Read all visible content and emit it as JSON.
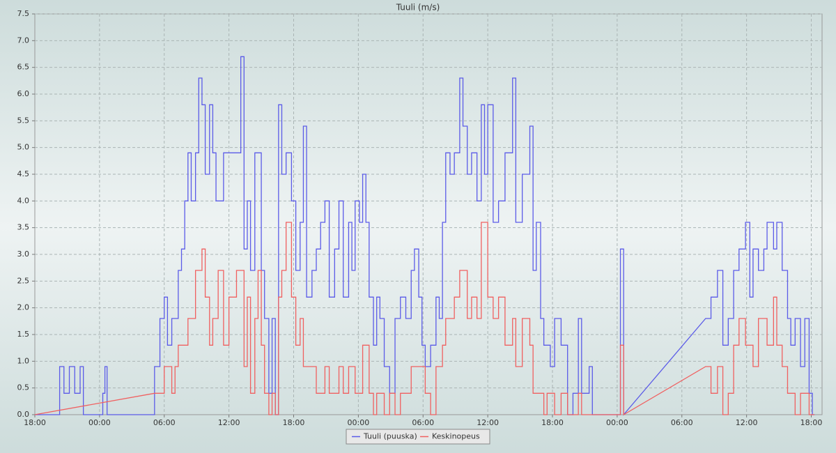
{
  "chart_data": {
    "type": "line",
    "step": true,
    "title": "Tuuli (m/s)",
    "xlim": [
      0,
      73
    ],
    "ylim": [
      0,
      7.5
    ],
    "grid": true,
    "legend": "bottom",
    "xticks": [
      {
        "value": 0,
        "label": "18:00"
      },
      {
        "value": 6,
        "label": "00:00"
      },
      {
        "value": 12,
        "label": "06:00"
      },
      {
        "value": 18,
        "label": "12:00"
      },
      {
        "value": 24,
        "label": "18:00"
      },
      {
        "value": 30,
        "label": "00:00"
      },
      {
        "value": 36,
        "label": "06:00"
      },
      {
        "value": 42,
        "label": "12:00"
      },
      {
        "value": 48,
        "label": "18:00"
      },
      {
        "value": 54,
        "label": "00:00"
      },
      {
        "value": 60,
        "label": "06:00"
      },
      {
        "value": 66,
        "label": "12:00"
      },
      {
        "value": 72,
        "label": "18:00"
      }
    ],
    "yticks": [
      {
        "value": 0,
        "label": "0.0"
      },
      {
        "value": 0.5,
        "label": "0.5"
      },
      {
        "value": 1,
        "label": "1.0"
      },
      {
        "value": 1.5,
        "label": "1.5"
      },
      {
        "value": 2,
        "label": "2.0"
      },
      {
        "value": 2.5,
        "label": "2.5"
      },
      {
        "value": 3,
        "label": "3.0"
      },
      {
        "value": 3.5,
        "label": "3.5"
      },
      {
        "value": 4,
        "label": "4.0"
      },
      {
        "value": 4.5,
        "label": "4.5"
      },
      {
        "value": 5,
        "label": "5.0"
      },
      {
        "value": 5.5,
        "label": "5.5"
      },
      {
        "value": 6,
        "label": "6.0"
      },
      {
        "value": 6.5,
        "label": "6.5"
      },
      {
        "value": 7,
        "label": "7.0"
      },
      {
        "value": 7.5,
        "label": "7.5"
      }
    ],
    "series": [
      {
        "name": "Tuuli (puuska)",
        "color": "#5b5be8",
        "x": [
          0,
          2.3,
          2.7,
          3.2,
          3.7,
          4.2,
          4.5,
          6.3,
          6.5,
          6.7,
          11.1,
          11.6,
          12.0,
          12.3,
          12.7,
          13.3,
          13.6,
          13.9,
          14.2,
          14.5,
          14.9,
          15.2,
          15.5,
          15.8,
          16.2,
          16.5,
          16.8,
          17.5,
          18.7,
          19.1,
          19.4,
          19.7,
          20.0,
          20.4,
          20.7,
          21.0,
          21.3,
          21.7,
          22.0,
          22.3,
          22.6,
          22.9,
          23.3,
          23.8,
          24.2,
          24.6,
          24.9,
          25.2,
          25.7,
          26.1,
          26.5,
          26.9,
          27.3,
          27.8,
          28.2,
          28.6,
          29.1,
          29.4,
          29.7,
          30.1,
          30.4,
          30.7,
          31.0,
          31.4,
          31.7,
          32.0,
          32.4,
          32.9,
          33.4,
          33.9,
          34.4,
          34.9,
          35.2,
          35.6,
          35.9,
          36.2,
          36.7,
          37.2,
          37.5,
          37.8,
          38.1,
          38.5,
          38.9,
          39.4,
          39.7,
          40.1,
          40.5,
          41.0,
          41.4,
          41.7,
          42.0,
          42.5,
          43.0,
          43.6,
          44.3,
          44.6,
          45.2,
          45.9,
          46.2,
          46.5,
          46.9,
          47.2,
          47.5,
          47.8,
          48.2,
          48.8,
          49.4,
          49.9,
          50.4,
          50.7,
          51.4,
          51.7,
          52.4,
          54.3,
          54.6,
          62.2,
          62.7,
          63.3,
          63.8,
          64.3,
          64.8,
          65.3,
          65.9,
          66.3,
          66.6,
          67.1,
          67.6,
          67.9,
          68.2,
          68.5,
          68.8,
          69.3,
          69.8,
          70.1,
          70.5,
          71.0,
          71.4,
          71.8,
          72.1,
          72.3
        ],
        "values": [
          0,
          0.9,
          0.4,
          0.9,
          0.4,
          0.9,
          0,
          0.4,
          0.9,
          0,
          0.9,
          1.8,
          2.2,
          1.3,
          1.8,
          2.7,
          3.1,
          4.0,
          4.9,
          4.0,
          4.9,
          6.3,
          5.8,
          4.5,
          5.8,
          4.9,
          4.0,
          4.9,
          4.9,
          6.7,
          3.1,
          4.0,
          2.7,
          4.9,
          4.9,
          2.7,
          1.8,
          0.4,
          1.8,
          0,
          5.8,
          4.5,
          4.9,
          4.0,
          2.7,
          3.6,
          5.4,
          2.2,
          2.7,
          3.1,
          3.6,
          4.0,
          2.2,
          3.1,
          4.0,
          2.2,
          3.6,
          2.7,
          4.0,
          3.6,
          4.5,
          3.6,
          2.2,
          1.3,
          2.2,
          1.8,
          0.9,
          0.4,
          1.8,
          2.2,
          1.8,
          2.7,
          3.1,
          2.2,
          1.3,
          0.9,
          1.3,
          2.2,
          1.8,
          3.6,
          4.9,
          4.5,
          4.9,
          6.3,
          5.4,
          4.5,
          4.9,
          4.0,
          5.8,
          4.5,
          5.8,
          3.6,
          4.0,
          4.9,
          6.3,
          3.6,
          4.5,
          5.4,
          2.7,
          3.6,
          1.8,
          1.3,
          1.3,
          0.9,
          1.8,
          1.3,
          0,
          0.4,
          1.8,
          0.4,
          0.9,
          0,
          0,
          3.1,
          0,
          1.8,
          2.2,
          2.7,
          1.3,
          1.8,
          2.7,
          3.1,
          3.6,
          2.2,
          3.1,
          2.7,
          3.1,
          3.6,
          3.6,
          3.1,
          3.6,
          2.7,
          1.8,
          1.3,
          1.8,
          0.9,
          1.8,
          0.4,
          0,
          0
        ]
      },
      {
        "name": "Keskinopeus",
        "color": "#f06060",
        "x": [
          0,
          11.1,
          12.0,
          12.7,
          13.0,
          13.3,
          14.2,
          14.9,
          15.5,
          15.8,
          16.2,
          16.5,
          17.0,
          17.5,
          18.0,
          18.7,
          19.4,
          19.7,
          20.0,
          20.4,
          20.7,
          21.0,
          21.3,
          21.7,
          22.0,
          22.3,
          22.6,
          22.9,
          23.3,
          23.8,
          24.2,
          24.6,
          24.9,
          25.2,
          26.1,
          26.9,
          27.3,
          28.2,
          28.6,
          29.1,
          29.7,
          30.4,
          31.0,
          31.4,
          31.7,
          32.4,
          32.9,
          33.4,
          33.9,
          34.9,
          35.9,
          36.2,
          36.7,
          37.2,
          37.8,
          38.1,
          38.9,
          39.4,
          40.1,
          40.5,
          41.0,
          41.4,
          42.0,
          42.5,
          43.0,
          43.6,
          44.3,
          44.6,
          45.2,
          45.9,
          46.2,
          47.2,
          47.5,
          48.2,
          48.8,
          49.4,
          50.4,
          50.7,
          52.4,
          54.3,
          54.6,
          62.2,
          62.7,
          63.3,
          63.8,
          64.3,
          64.8,
          65.3,
          65.9,
          66.6,
          67.1,
          67.9,
          68.5,
          68.8,
          69.3,
          69.8,
          70.5,
          71.0,
          71.8,
          72.3
        ],
        "values": [
          0,
          0.4,
          0.9,
          0.4,
          0.9,
          1.3,
          1.8,
          2.7,
          3.1,
          2.2,
          1.3,
          1.8,
          2.7,
          1.3,
          2.2,
          2.7,
          0.9,
          2.2,
          0.4,
          1.8,
          2.7,
          1.3,
          0.4,
          0,
          0.4,
          0,
          2.2,
          2.7,
          3.6,
          2.2,
          1.3,
          1.8,
          0.9,
          0.9,
          0.4,
          0.9,
          0.4,
          0.9,
          0.4,
          0.9,
          0.4,
          1.3,
          0.4,
          0,
          0.4,
          0,
          0.4,
          0,
          0.4,
          0.9,
          0.9,
          0.4,
          0,
          0.9,
          1.3,
          1.8,
          2.2,
          2.7,
          1.8,
          2.2,
          1.8,
          3.6,
          2.2,
          1.8,
          2.2,
          1.3,
          1.8,
          0.9,
          1.8,
          1.3,
          0.4,
          0,
          0.4,
          0,
          0.4,
          0,
          0.4,
          0,
          0,
          1.3,
          0,
          0.9,
          0.4,
          0.9,
          0,
          0.4,
          1.3,
          1.8,
          1.3,
          0.9,
          1.8,
          1.3,
          2.2,
          1.3,
          0.9,
          0.4,
          0,
          0.4,
          0,
          0
        ]
      }
    ]
  }
}
